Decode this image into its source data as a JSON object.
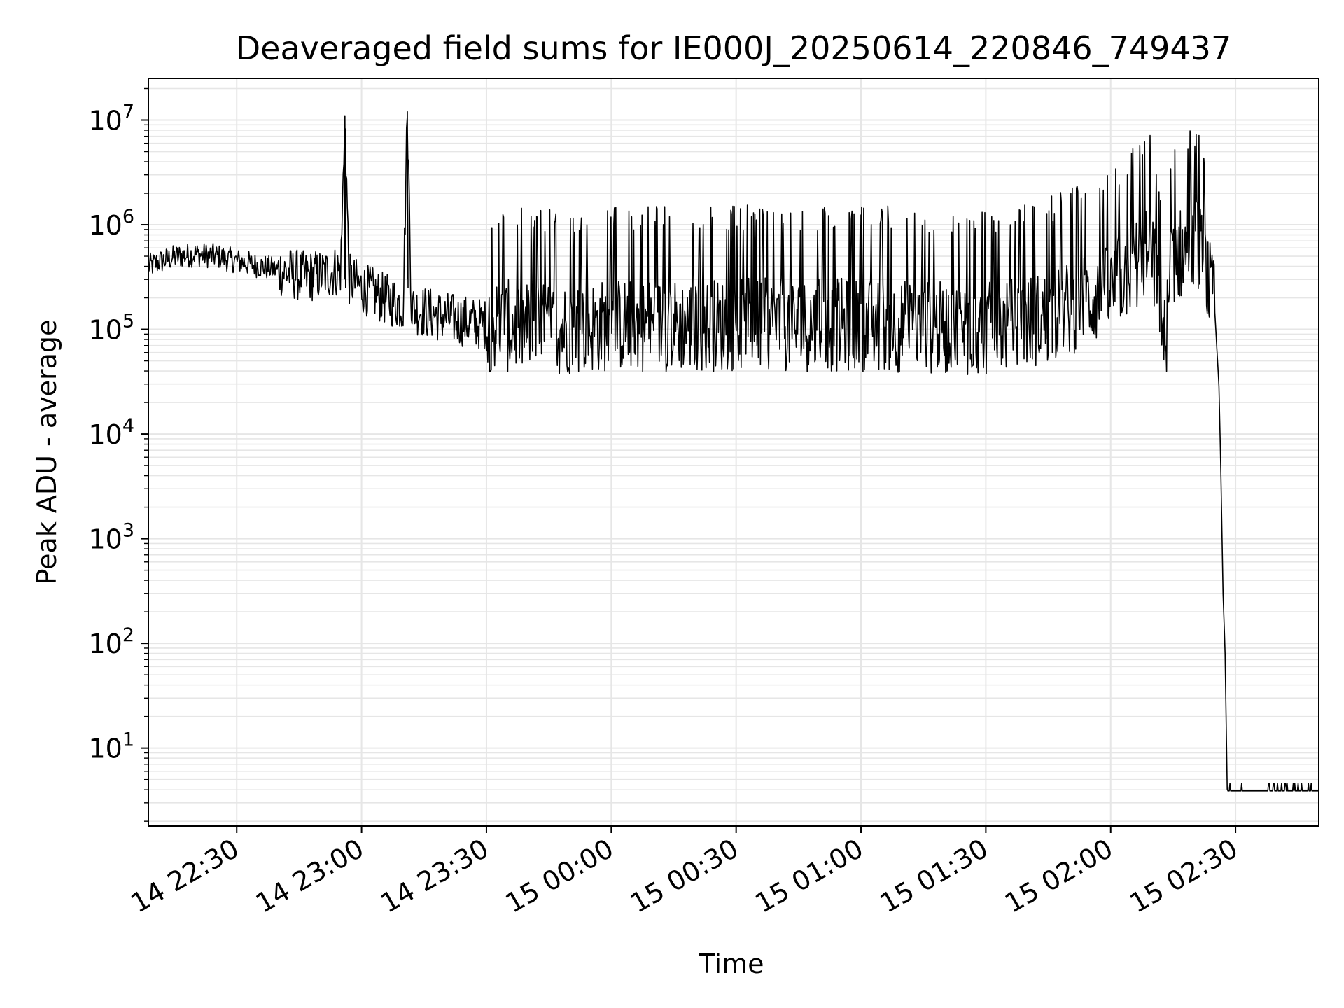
{
  "chart_data": {
    "type": "line",
    "title": "Deaveraged field sums for IE000J_20250614_220846_749437",
    "xlabel": "Time",
    "ylabel": "Peak ADU - average",
    "yscale": "log",
    "ylim": [
      1.8,
      25000000
    ],
    "xlim": [
      "2025-06-14 22:08:46",
      "2025-06-15 02:50:00"
    ],
    "grid": true,
    "line_color": "#000000",
    "grid_color": "#e6e6e6",
    "x_ticks": [
      {
        "t": "2025-06-14 22:30",
        "label": "14 22:30"
      },
      {
        "t": "2025-06-14 23:00",
        "label": "14 23:00"
      },
      {
        "t": "2025-06-14 23:30",
        "label": "14 23:30"
      },
      {
        "t": "2025-06-15 00:00",
        "label": "15 00:00"
      },
      {
        "t": "2025-06-15 00:30",
        "label": "15 00:30"
      },
      {
        "t": "2025-06-15 01:00",
        "label": "15 01:00"
      },
      {
        "t": "2025-06-15 01:30",
        "label": "15 01:30"
      },
      {
        "t": "2025-06-15 02:00",
        "label": "15 02:00"
      },
      {
        "t": "2025-06-15 02:30",
        "label": "15 02:30"
      }
    ],
    "y_ticks": [
      {
        "value": 10,
        "base": "10",
        "exp": "1"
      },
      {
        "value": 100,
        "base": "10",
        "exp": "2"
      },
      {
        "value": 1000,
        "base": "10",
        "exp": "3"
      },
      {
        "value": 10000,
        "base": "10",
        "exp": "4"
      },
      {
        "value": 100000,
        "base": "10",
        "exp": "5"
      },
      {
        "value": 1000000,
        "base": "10",
        "exp": "6"
      },
      {
        "value": 10000000,
        "base": "10",
        "exp": "7"
      }
    ],
    "series": [
      {
        "x": [
          "2025-06-14 22:08:46",
          "2025-06-14 22:12:00",
          "2025-06-14 22:16:00",
          "2025-06-14 22:20:00",
          "2025-06-14 22:25:00",
          "2025-06-14 22:30:00",
          "2025-06-14 22:36:00",
          "2025-06-14 22:42:00",
          "2025-06-14 22:46:00",
          "2025-06-14 22:50:00",
          "2025-06-14 22:55:00",
          "2025-06-14 22:56:00",
          "2025-06-14 22:57:00",
          "2025-06-14 23:00:00",
          "2025-06-14 23:05:00",
          "2025-06-14 23:10:00",
          "2025-06-14 23:11:00",
          "2025-06-14 23:12:00",
          "2025-06-14 23:20:00",
          "2025-06-14 23:30:00",
          "2025-06-14 23:45:00",
          "2025-06-15 00:00:00",
          "2025-06-15 00:30:00",
          "2025-06-15 01:00:00",
          "2025-06-15 01:30:00",
          "2025-06-15 01:45:00",
          "2025-06-15 02:00:00",
          "2025-06-15 02:05:00",
          "2025-06-15 02:10:00",
          "2025-06-15 02:13:00",
          "2025-06-15 02:15:00",
          "2025-06-15 02:18:00",
          "2025-06-15 02:21:00",
          "2025-06-15 02:23:00",
          "2025-06-15 02:25:00",
          "2025-06-15 02:26:00",
          "2025-06-15 02:26:30",
          "2025-06-15 02:27:00",
          "2025-06-15 02:27:30",
          "2025-06-15 02:28:00",
          "2025-06-15 02:35:00",
          "2025-06-15 02:50:00"
        ],
        "y": [
          400000,
          450000,
          500000,
          520000,
          500000,
          450000,
          400000,
          350000,
          320000,
          330000,
          370000,
          11000000,
          300000,
          250000,
          200000,
          170000,
          12000000,
          160000,
          130000,
          110000,
          100000,
          110000,
          110000,
          110000,
          100000,
          130000,
          230000,
          400000,
          550000,
          70000,
          500000,
          550000,
          650000,
          350000,
          150000,
          30000,
          4000,
          300,
          80,
          4,
          4,
          4
        ]
      }
    ]
  }
}
